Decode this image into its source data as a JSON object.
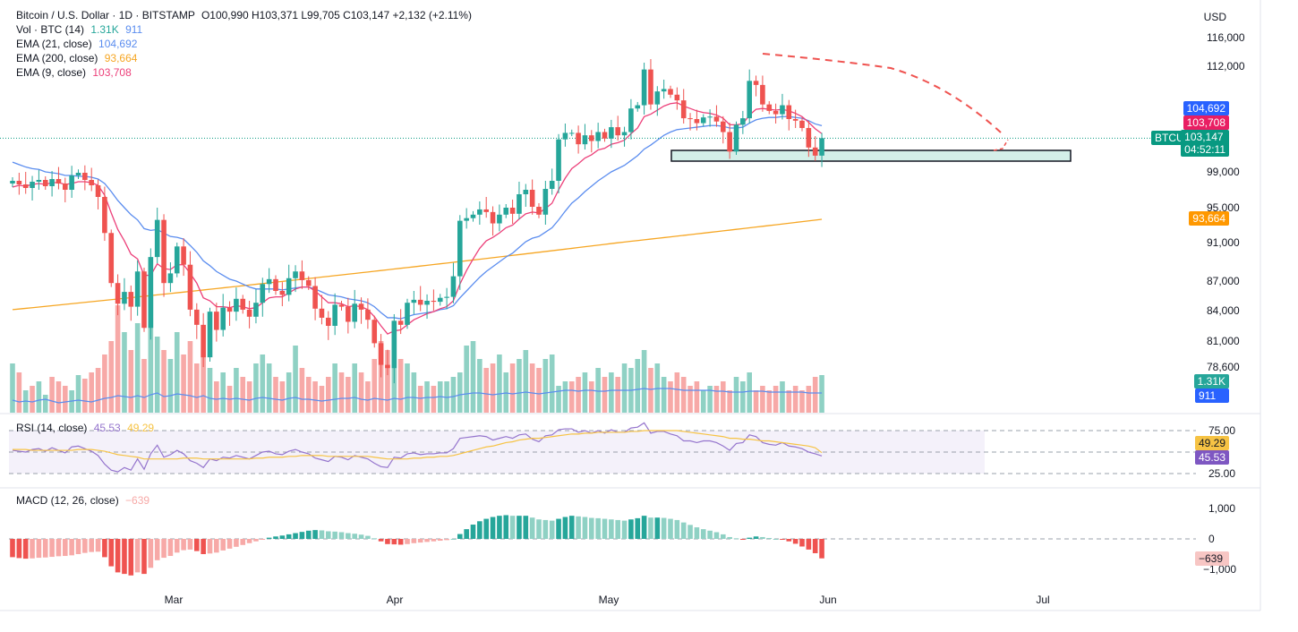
{
  "legend": {
    "symbol": "Bitcoin / U.S. Dollar · 1D · BITSTAMP",
    "ohlc": "O100,990 H103,371 L99,705 C103,147 +2,132 (+2.11%)",
    "vol_label": "Vol · BTC (14)",
    "vol_v1": "1.31K",
    "vol_v2": "911",
    "ema21_label": "EMA (21, close)",
    "ema21_value": "104,692",
    "ema200_label": "EMA (200, close)",
    "ema200_value": "93,664",
    "ema9_label": "EMA (9, close)",
    "ema9_value": "103,708",
    "rsi_label": "RSI (14, close)",
    "rsi_v1": "45.53",
    "rsi_v2": "49.29",
    "macd_label": "MACD (12, 26, close)",
    "macd_value": "−639"
  },
  "currency": "USD",
  "price_tags": {
    "ema21": "104,692",
    "ema9": "103,708",
    "symbol": "BTCUSD",
    "last": "103,147",
    "countdown": "04:52:11",
    "ema200": "93,664",
    "vol1": "1.31K",
    "vol2": "911",
    "rsi1": "49.29",
    "rsi2": "45.53",
    "macd": "−639"
  },
  "colors": {
    "up": "#26a69a",
    "down": "#ef5350",
    "up_light": "#8fd1c4",
    "down_light": "#f7a9a7",
    "ema9": "#ec407a",
    "ema21": "#5b8def",
    "ema200": "#f6a623",
    "rsi": "#9575cd",
    "rsi_ma": "#f6c344"
  },
  "chart_data": {
    "type": "candlestick",
    "price_axis_ticks": [
      "116,000",
      "112,000",
      "99,000",
      "95,000",
      "91,000",
      "87,000",
      "84,000",
      "81,000",
      "78,600"
    ],
    "rsi_axis_ticks": [
      "75.00",
      "25.00"
    ],
    "macd_axis_ticks": [
      "1,000",
      "0",
      "−1,000"
    ],
    "x_ticks": [
      "Mar",
      "Apr",
      "May",
      "Jun",
      "Jul"
    ],
    "closes": [
      98000,
      97600,
      97200,
      97900,
      98100,
      97400,
      98200,
      97700,
      97000,
      98600,
      98900,
      98100,
      97500,
      96200,
      92100,
      86800,
      84700,
      85900,
      84400,
      88000,
      82300,
      89500,
      93600,
      86800,
      87800,
      90600,
      88700,
      84100,
      82600,
      79500,
      83900,
      82100,
      84300,
      83900,
      85200,
      84100,
      83400,
      84800,
      86700,
      87200,
      86000,
      85600,
      87300,
      88000,
      87100,
      86500,
      84200,
      83300,
      82500,
      84600,
      84400,
      82900,
      84700,
      84100,
      83100,
      80800,
      78800,
      78500,
      83000,
      82600,
      84800,
      85100,
      84600,
      85000,
      84900,
      85300,
      85400,
      87500,
      93500,
      93800,
      94200,
      94800,
      94500,
      93200,
      94200,
      95000,
      94300,
      96500,
      97000,
      95100,
      94200,
      97100,
      98000,
      103000,
      103800,
      103800,
      102400,
      103500,
      102800,
      103900,
      103100,
      104500,
      103500,
      103900,
      106800,
      107200,
      111600,
      107300,
      108900,
      109200,
      108500,
      107800,
      105600,
      105500,
      105000,
      105700,
      105800,
      105200,
      103900,
      101500,
      104800,
      105600,
      110200,
      109700,
      107300,
      106500,
      106100,
      107200,
      105500,
      105300,
      104400,
      102000,
      101000,
      103147
    ],
    "ema9": [
      97300,
      97500,
      97400,
      97600,
      97700,
      97600,
      97800,
      97800,
      97600,
      97700,
      97900,
      97900,
      97800,
      97500,
      96400,
      94400,
      92500,
      91200,
      89800,
      89300,
      87600,
      87600,
      88800,
      88300,
      88200,
      88700,
      88700,
      87800,
      86800,
      85300,
      85000,
      84400,
      84400,
      84300,
      84500,
      84400,
      84200,
      84300,
      84800,
      85300,
      85400,
      85400,
      85800,
      86200,
      86400,
      86400,
      86000,
      85400,
      84800,
      84800,
      84700,
      84400,
      84500,
      84400,
      84100,
      83400,
      82500,
      81700,
      82000,
      82100,
      82600,
      83100,
      83400,
      83700,
      83900,
      84200,
      84400,
      85000,
      86700,
      88100,
      89300,
      90400,
      91200,
      91600,
      92100,
      92700,
      93000,
      93700,
      94300,
      94500,
      94400,
      94900,
      95500,
      97000,
      98300,
      99400,
      100000,
      100700,
      101100,
      101700,
      101900,
      102400,
      102600,
      102900,
      103700,
      104400,
      105800,
      106100,
      106600,
      107100,
      107400,
      107500,
      107100,
      106800,
      106500,
      106300,
      106200,
      106000,
      105600,
      104800,
      104800,
      104900,
      106000,
      106700,
      106800,
      106700,
      106600,
      106700,
      106500,
      106200,
      105800,
      105100,
      104300,
      103708
    ],
    "ema21": [
      100200,
      99900,
      99600,
      99400,
      99300,
      99000,
      98900,
      98800,
      98600,
      98600,
      98500,
      98500,
      98400,
      98200,
      97700,
      96800,
      95800,
      95000,
      94200,
      93600,
      92600,
      92400,
      92500,
      92100,
      91700,
      91600,
      91400,
      90700,
      90000,
      89100,
      88600,
      88000,
      87600,
      87200,
      87000,
      86700,
      86400,
      86200,
      86200,
      86200,
      86200,
      86100,
      86200,
      86300,
      86400,
      86400,
      86200,
      85900,
      85600,
      85500,
      85400,
      85200,
      85100,
      85000,
      84800,
      84400,
      83800,
      83300,
      83300,
      83200,
      83400,
      83600,
      83700,
      83800,
      83900,
      84100,
      84200,
      84500,
      85300,
      86000,
      86700,
      87400,
      88000,
      88500,
      89000,
      89500,
      89900,
      90500,
      91100,
      91500,
      91700,
      92200,
      92700,
      93600,
      94600,
      95500,
      96100,
      96800,
      97400,
      98000,
      98500,
      99000,
      99400,
      99800,
      100400,
      101000,
      101800,
      102300,
      102900,
      103500,
      103900,
      104200,
      104300,
      104400,
      104500,
      104600,
      104700,
      104700,
      104600,
      104400,
      104400,
      104500,
      105000,
      105400,
      105600,
      105700,
      105700,
      105800,
      105800,
      105700,
      105600,
      105300,
      104900,
      104692
    ],
    "ema200_start": 84100,
    "ema200_end": 93664,
    "support_zone": [
      100800,
      102000
    ],
    "rsi": [
      52,
      51,
      50,
      53,
      54,
      51,
      55,
      52,
      49,
      56,
      57,
      54,
      51,
      46,
      36,
      29,
      27,
      32,
      29,
      42,
      30,
      48,
      58,
      44,
      47,
      52,
      48,
      40,
      37,
      32,
      42,
      40,
      44,
      43,
      46,
      44,
      42,
      46,
      50,
      51,
      48,
      47,
      51,
      53,
      50,
      48,
      43,
      41,
      39,
      45,
      44,
      41,
      46,
      44,
      42,
      37,
      33,
      32,
      44,
      43,
      48,
      49,
      47,
      48,
      48,
      49,
      49,
      54,
      66,
      67,
      68,
      69,
      68,
      64,
      66,
      68,
      66,
      70,
      71,
      65,
      62,
      69,
      70,
      76,
      77,
      77,
      73,
      75,
      72,
      75,
      72,
      76,
      73,
      73,
      78,
      79,
      84,
      72,
      74,
      74,
      71,
      69,
      63,
      63,
      61,
      63,
      63,
      61,
      57,
      52,
      60,
      61,
      70,
      68,
      61,
      59,
      58,
      61,
      57,
      56,
      54,
      50,
      48,
      45.53
    ],
    "rsi_ma": [
      53,
      53,
      53,
      52,
      52,
      52,
      52,
      52,
      52,
      52,
      53,
      53,
      53,
      52,
      51,
      49,
      47,
      46,
      45,
      44,
      42,
      42,
      42,
      42,
      42,
      42,
      43,
      43,
      43,
      42,
      42,
      42,
      42,
      42,
      42,
      42,
      42,
      43,
      43,
      44,
      44,
      44,
      45,
      45,
      46,
      46,
      46,
      46,
      45,
      45,
      45,
      45,
      45,
      45,
      45,
      44,
      43,
      42,
      42,
      42,
      42,
      43,
      43,
      44,
      44,
      45,
      45,
      46,
      48,
      50,
      52,
      54,
      56,
      57,
      59,
      61,
      62,
      64,
      65,
      66,
      66,
      67,
      68,
      69,
      70,
      71,
      71,
      72,
      72,
      73,
      73,
      73,
      73,
      73,
      74,
      74,
      75,
      75,
      75,
      75,
      75,
      75,
      74,
      73,
      72,
      71,
      70,
      69,
      68,
      66,
      66,
      65,
      65,
      64,
      63,
      63,
      62,
      61,
      60,
      59,
      58,
      57,
      55,
      49.29
    ],
    "macd": [
      -600,
      -630,
      -650,
      -640,
      -620,
      -610,
      -590,
      -570,
      -560,
      -540,
      -500,
      -460,
      -430,
      -420,
      -600,
      -900,
      -1100,
      -1150,
      -1200,
      -1100,
      -1150,
      -950,
      -700,
      -620,
      -560,
      -450,
      -370,
      -350,
      -400,
      -500,
      -480,
      -450,
      -380,
      -320,
      -260,
      -200,
      -140,
      -80,
      -20,
      40,
      80,
      110,
      150,
      190,
      230,
      270,
      290,
      280,
      250,
      240,
      220,
      190,
      170,
      140,
      100,
      20,
      -80,
      -170,
      -180,
      -190,
      -170,
      -140,
      -120,
      -100,
      -80,
      -60,
      -40,
      0,
      160,
      320,
      470,
      580,
      660,
      720,
      760,
      780,
      760,
      760,
      760,
      700,
      640,
      620,
      600,
      660,
      720,
      760,
      740,
      720,
      690,
      680,
      660,
      640,
      620,
      600,
      640,
      680,
      760,
      700,
      700,
      690,
      660,
      620,
      540,
      460,
      380,
      320,
      270,
      220,
      150,
      60,
      20,
      -20,
      40,
      80,
      60,
      30,
      0,
      -20,
      -80,
      -160,
      -250,
      -350,
      -470,
      -639
    ],
    "volume": [
      14,
      12,
      13,
      12,
      14,
      15,
      13,
      11,
      12,
      13,
      14,
      13,
      12,
      14,
      16,
      17,
      19,
      18,
      17,
      19,
      17,
      20,
      22,
      18,
      19,
      21,
      20,
      19,
      17,
      19,
      16,
      15,
      16,
      15,
      16,
      15,
      14,
      16,
      17,
      16,
      15,
      14,
      16,
      17,
      15,
      15,
      14,
      13,
      14,
      15,
      16,
      16,
      17,
      15,
      14,
      16,
      15,
      14,
      16,
      15,
      17,
      17,
      16,
      17,
      17,
      18,
      17,
      18,
      20,
      21,
      22,
      22,
      21,
      20,
      21,
      22,
      21,
      22,
      23,
      22,
      21,
      22,
      23,
      24,
      25,
      25,
      24,
      25,
      25,
      24,
      24,
      25,
      25,
      25,
      25,
      26,
      27,
      26,
      27,
      27,
      27,
      26,
      25,
      25,
      25,
      25,
      25,
      24,
      24,
      23,
      23,
      23,
      24,
      24,
      24,
      23,
      23,
      23,
      23,
      23,
      23,
      22,
      22,
      22
    ],
    "vol_heights": [
      55,
      45,
      25,
      30,
      35,
      20,
      40,
      35,
      30,
      25,
      42,
      38,
      45,
      50,
      65,
      80,
      120,
      90,
      70,
      100,
      60,
      130,
      85,
      70,
      60,
      90,
      65,
      80,
      55,
      70,
      50,
      35,
      45,
      30,
      50,
      40,
      35,
      55,
      65,
      55,
      40,
      35,
      45,
      75,
      50,
      40,
      35,
      30,
      40,
      55,
      45,
      40,
      55,
      45,
      35,
      60,
      80,
      70,
      95,
      60,
      55,
      45,
      30,
      35,
      30,
      35,
      35,
      40,
      45,
      75,
      80,
      60,
      50,
      55,
      65,
      45,
      55,
      60,
      70,
      55,
      50,
      60,
      65,
      30,
      35,
      35,
      40,
      45,
      35,
      50,
      40,
      45,
      40,
      55,
      50,
      60,
      70,
      50,
      55,
      40,
      35,
      45,
      40,
      30,
      35,
      25,
      30,
      30,
      35,
      25,
      40,
      35,
      45,
      25,
      30,
      25,
      30,
      35,
      25,
      30,
      25,
      30,
      40,
      42
    ],
    "vol_up": [
      1,
      0,
      1,
      0,
      1,
      1,
      0,
      0,
      0,
      1,
      1,
      0,
      0,
      0,
      0,
      0,
      0,
      1,
      0,
      1,
      0,
      1,
      1,
      0,
      1,
      1,
      0,
      0,
      0,
      0,
      1,
      0,
      1,
      0,
      1,
      0,
      0,
      1,
      1,
      1,
      0,
      0,
      1,
      1,
      0,
      0,
      0,
      0,
      0,
      1,
      0,
      0,
      1,
      0,
      0,
      0,
      0,
      0,
      1,
      0,
      1,
      1,
      0,
      1,
      0,
      1,
      1,
      1,
      1,
      1,
      1,
      1,
      0,
      0,
      1,
      1,
      0,
      1,
      1,
      0,
      0,
      1,
      1,
      1,
      1,
      0,
      0,
      1,
      0,
      1,
      0,
      1,
      0,
      1,
      1,
      1,
      1,
      0,
      1,
      1,
      0,
      0,
      0,
      0,
      0,
      1,
      1,
      0,
      0,
      0,
      1,
      1,
      1,
      0,
      0,
      0,
      0,
      1,
      0,
      0,
      0,
      0,
      0,
      1
    ]
  }
}
